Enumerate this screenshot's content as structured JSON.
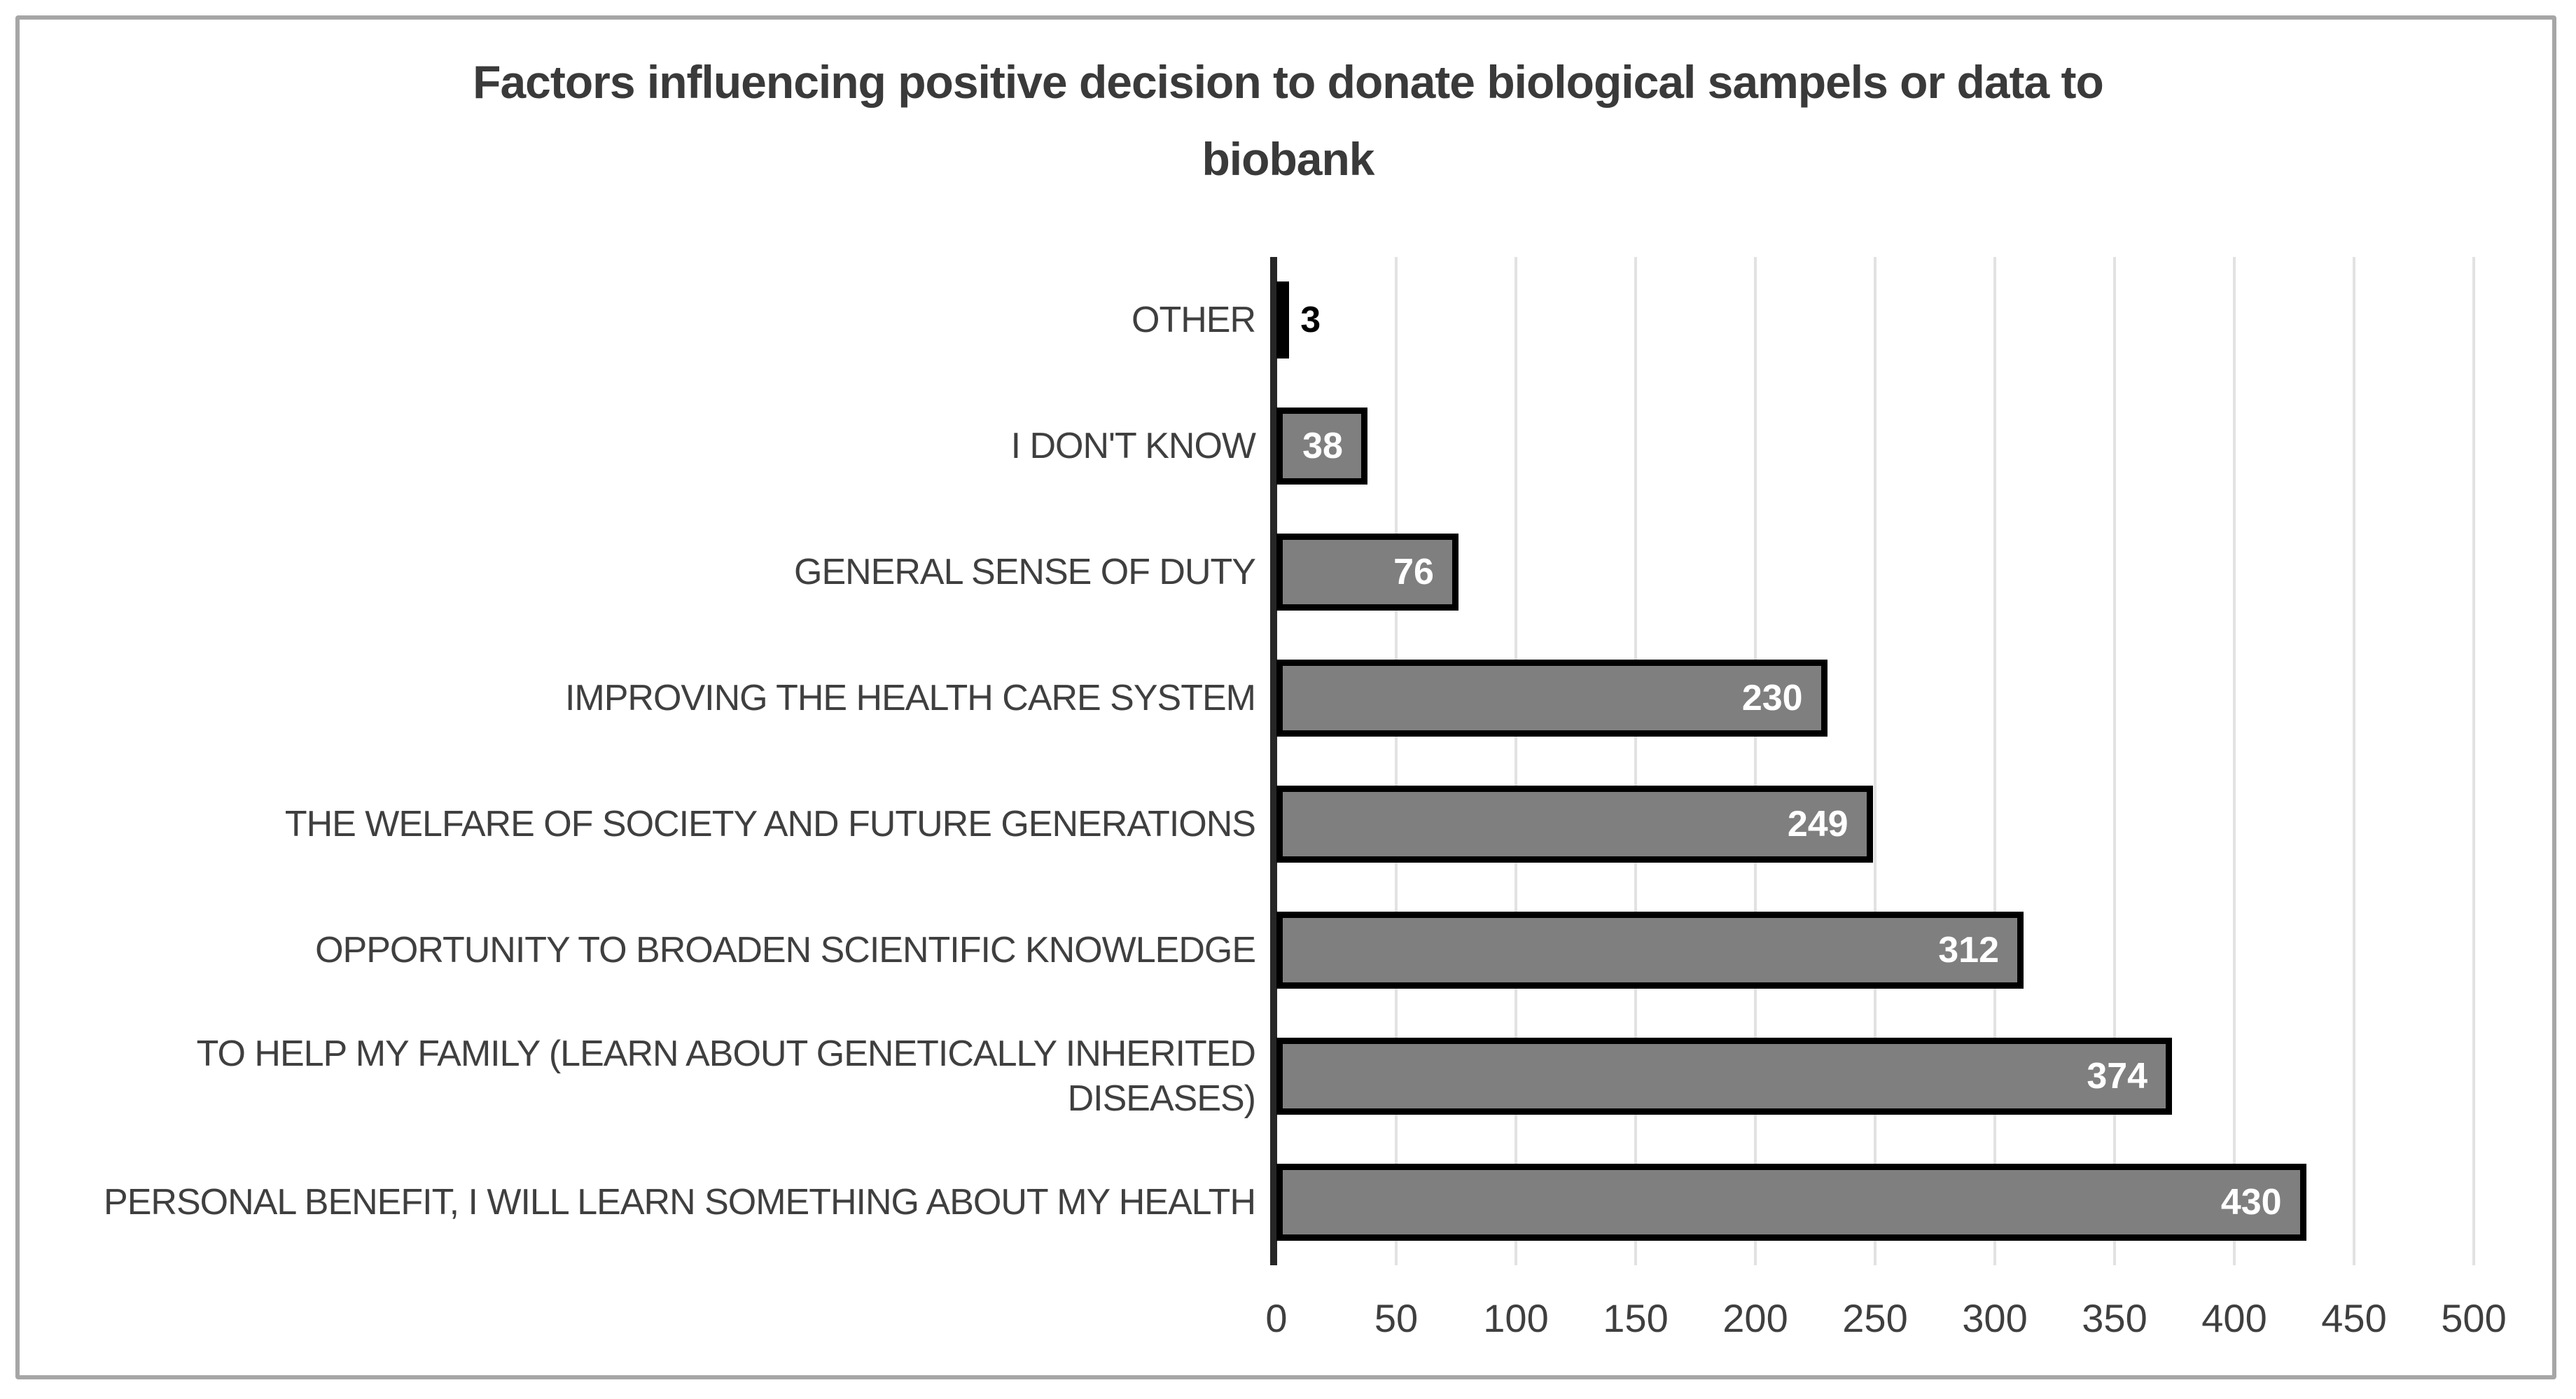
{
  "chart_data": {
    "type": "bar",
    "orientation": "horizontal",
    "title": "Factors influencing positive decision to donate biological sampels or data to biobank",
    "title_lines": [
      "Factors influencing positive decision to donate biological sampels or data to",
      "biobank"
    ],
    "categories": [
      "OTHER",
      "I DON'T KNOW",
      "GENERAL SENSE OF DUTY",
      "IMPROVING THE HEALTH CARE SYSTEM",
      "THE WELFARE OF SOCIETY AND FUTURE GENERATIONS",
      "OPPORTUNITY TO BROADEN SCIENTIFIC KNOWLEDGE",
      "TO HELP MY FAMILY (LEARN ABOUT GENETICALLY INHERITED\nDISEASES)",
      "PERSONAL BENEFIT, I WILL LEARN SOMETHING ABOUT MY HEALTH"
    ],
    "values": [
      3,
      38,
      76,
      230,
      249,
      312,
      374,
      430
    ],
    "data_labels": [
      "3",
      "38",
      "76",
      "230",
      "249",
      "312",
      "374",
      "430"
    ],
    "xlabel": "",
    "ylabel": "",
    "xlim": [
      0,
      500
    ],
    "x_ticks": [
      0,
      50,
      100,
      150,
      200,
      250,
      300,
      350,
      400,
      450,
      500
    ],
    "grid": "vertical-major",
    "legend": "none",
    "colors": {
      "bar_fill": "#7f7f7f",
      "bar_border": "#000000",
      "value_label_inside": "#ffffff",
      "value_label_outside": "#000000",
      "gridline": "#e2e2e2",
      "axis_line": "#262626",
      "title_text": "#3a3a3a",
      "category_text": "#3f3f3f",
      "tick_text": "#3f3f3f",
      "frame_border": "#a6a6a6",
      "background": "#ffffff"
    }
  }
}
